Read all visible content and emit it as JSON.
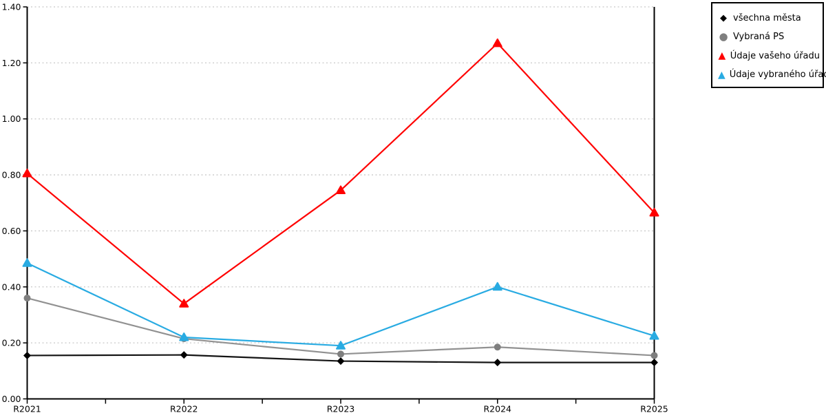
{
  "chart_data": {
    "type": "line",
    "title": "",
    "xlabel": "",
    "ylabel": "",
    "categories": [
      "R2021",
      "R2022",
      "R2023",
      "R2024",
      "R2025"
    ],
    "series": [
      {
        "name": "všechna města",
        "marker": "diamond",
        "color": "#000000",
        "line_color": "#141414",
        "values": [
          0.155,
          0.157,
          0.135,
          0.13,
          0.13
        ]
      },
      {
        "name": "Vybraná PS",
        "marker": "circle",
        "color": "#7f7f7f",
        "line_color": "#919191",
        "values": [
          0.36,
          0.215,
          0.16,
          0.185,
          0.155
        ]
      },
      {
        "name": "Údaje vašeho úřadu",
        "marker": "triangle",
        "color": "#ff0000",
        "line_color": "#ff0000",
        "values": [
          0.805,
          0.34,
          0.745,
          1.27,
          0.665
        ]
      },
      {
        "name": "Údaje vybraného úřadu",
        "marker": "triangle",
        "color": "#29abe2",
        "line_color": "#29abe2",
        "values": [
          0.485,
          0.22,
          0.19,
          0.4,
          0.225
        ]
      }
    ],
    "ylim": [
      0,
      1.4
    ],
    "y_tick_labels": [
      "0.00",
      "0.20",
      "0.40",
      "0.60",
      "0.80",
      "1.00",
      "1.20",
      "1.40"
    ],
    "grid": "horizontal-dotted",
    "gridline_color": "#c8c8c8",
    "axis_color": "#000000",
    "background": "#ffffff",
    "legend_position": "top-right",
    "marker_glyphs": {
      "diamond": "◆",
      "circle": "●",
      "triangle": "▲"
    }
  }
}
